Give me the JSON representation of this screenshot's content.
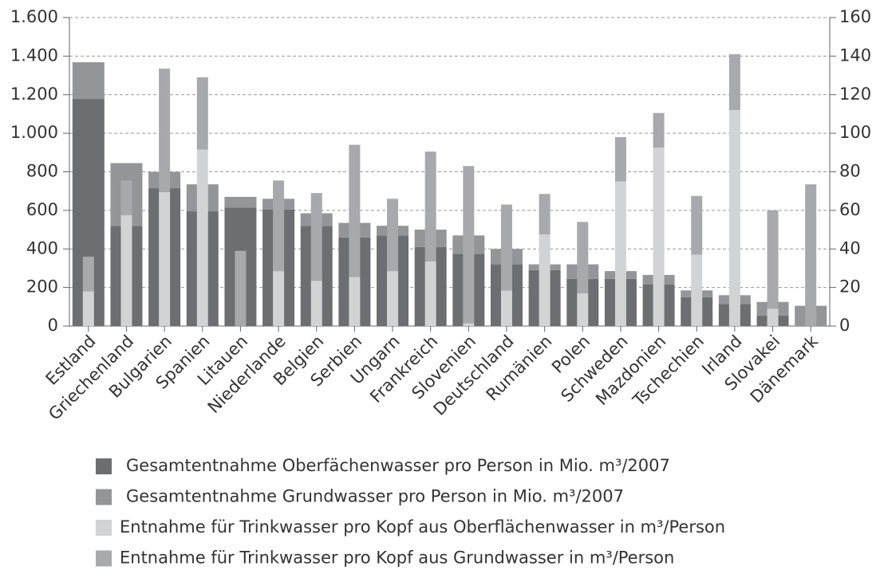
{
  "chart_data": {
    "type": "bar",
    "categories": [
      "Estland",
      "Griechenland",
      "Bulgarien",
      "Spanien",
      "Litauen",
      "Niederlande",
      "Belgien",
      "Serbien",
      "Ungarn",
      "Frankreich",
      "Slovenien",
      "Deutschland",
      "Rumänien",
      "Polen",
      "Schweden",
      "Mazdonien",
      "Tschechien",
      "Irland",
      "Slovakei",
      "Dänemark"
    ],
    "series": [
      {
        "name": "Gesamtentnahme Oberfächenwasser pro Person in Mio. m³/2007",
        "color": "#6d6e71",
        "values": [
          1178,
          520,
          715,
          595,
          615,
          605,
          520,
          460,
          470,
          410,
          375,
          320,
          290,
          245,
          245,
          215,
          150,
          115,
          55,
          0
        ]
      },
      {
        "name": "Gesamtentnahme Grundwasser pro Person in Mio. m³/2007",
        "color": "#939598",
        "values": [
          190,
          325,
          85,
          140,
          55,
          55,
          65,
          75,
          50,
          90,
          95,
          80,
          30,
          75,
          40,
          50,
          35,
          45,
          70,
          105
        ]
      },
      {
        "name": "Entnahme für Trinkwasser pro Kopf aus Oberflächenwasser in m³/Person",
        "color": "#d1d3d4",
        "axis": "y2",
        "values": [
          18,
          57.5,
          69.5,
          91.5,
          0,
          28.5,
          23.5,
          25.5,
          28.5,
          33.5,
          1.5,
          18.5,
          47.5,
          17,
          75,
          92.5,
          37,
          112,
          9,
          0
        ]
      },
      {
        "name": "Entnahme für Trinkwasser pro Kopf aus Grundwasser in m³/Person",
        "color": "#a7a9ac",
        "axis": "y2",
        "values": [
          18,
          18,
          64,
          37.5,
          39,
          47,
          45.5,
          68.5,
          37.5,
          57,
          81.5,
          44.5,
          21,
          37,
          23,
          18,
          30.5,
          29,
          51,
          73.5
        ]
      }
    ],
    "ylim": [
      0,
      1600
    ],
    "yticks": [
      0,
      200,
      400,
      600,
      800,
      {
        "value": 1000,
        "label": "1.000"
      },
      {
        "value": 1200,
        "label": "1.200"
      },
      {
        "value": 1400,
        "label": "1.400"
      },
      {
        "value": 1600,
        "label": "1.600"
      }
    ],
    "y2lim": [
      0,
      160
    ],
    "y2ticks": [
      0,
      20,
      40,
      60,
      80,
      100,
      120,
      140,
      160
    ],
    "grid": true
  }
}
